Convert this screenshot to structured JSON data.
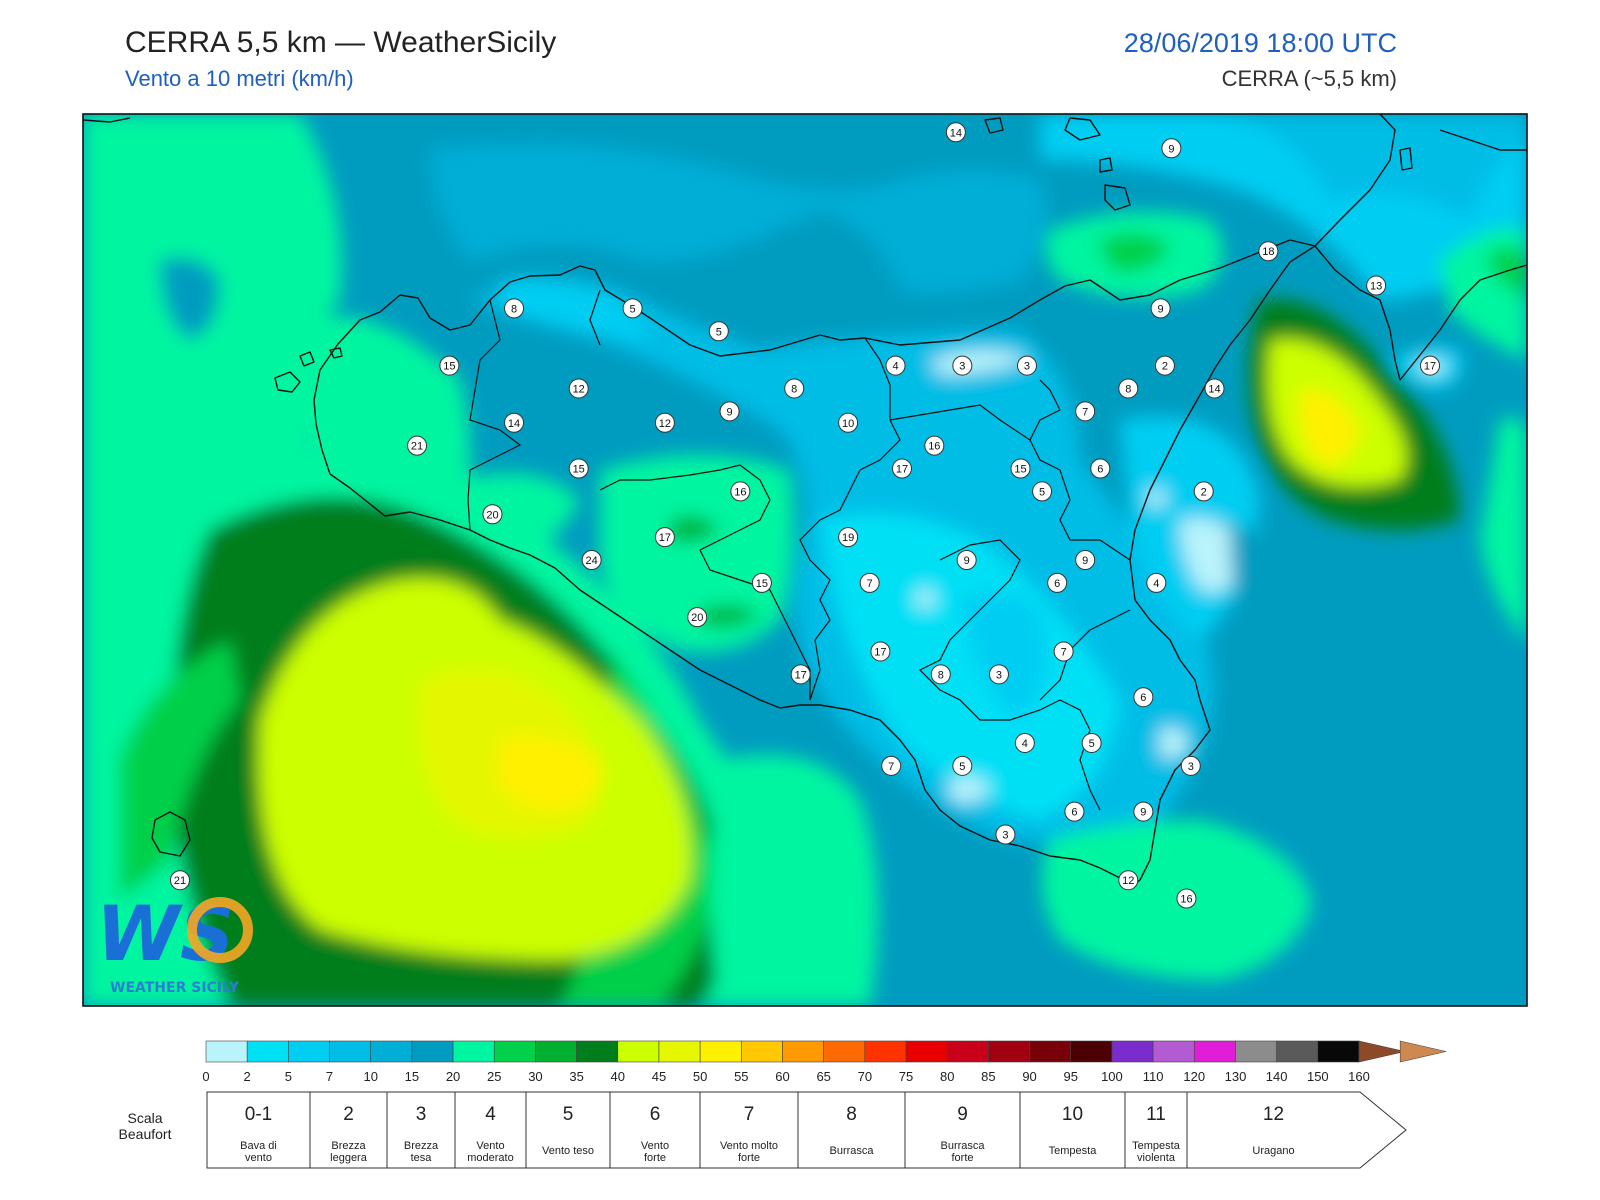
{
  "header": {
    "title": "CERRA 5,5 km — WeatherSicily",
    "subtitle": "Vento a 10 metri (km/h)",
    "datetime": "28/06/2019 18:00 UTC",
    "model": "CERRA (~5,5 km)"
  },
  "logo": {
    "text": "WS",
    "tagline": "WEATHER SICILY"
  },
  "colorbar": {
    "ticks": [
      "0",
      "2",
      "5",
      "7",
      "10",
      "15",
      "20",
      "25",
      "30",
      "35",
      "40",
      "45",
      "50",
      "55",
      "60",
      "65",
      "70",
      "75",
      "80",
      "85",
      "90",
      "95",
      "100",
      "110",
      "120",
      "130",
      "140",
      "150",
      "160"
    ],
    "colors": [
      "#b9f3fb",
      "#00e0f5",
      "#00cdf2",
      "#00bde6",
      "#00aed6",
      "#009cc0",
      "#00f5a0",
      "#00d04a",
      "#00b030",
      "#007e1c",
      "#ccff00",
      "#e4f700",
      "#fff000",
      "#ffc800",
      "#ff9a00",
      "#ff6a00",
      "#ff3300",
      "#e80000",
      "#c80018",
      "#a00010",
      "#780008",
      "#4a0004",
      "#7a2ccc",
      "#b25bd2",
      "#e01ed8",
      "#8c8c8c",
      "#5a5a5a",
      "#080808",
      "#8c4a28",
      "#cc8a50"
    ]
  },
  "beaufort": {
    "title": "Scala Beaufort",
    "scale": [
      {
        "num": "0-1",
        "desc": [
          "Bava di",
          "vento"
        ]
      },
      {
        "num": "2",
        "desc": [
          "Brezza",
          "leggera"
        ]
      },
      {
        "num": "3",
        "desc": [
          "Brezza",
          "tesa"
        ]
      },
      {
        "num": "4",
        "desc": [
          "Vento",
          "moderato"
        ]
      },
      {
        "num": "5",
        "desc": [
          "Vento teso"
        ]
      },
      {
        "num": "6",
        "desc": [
          "Vento",
          "forte"
        ]
      },
      {
        "num": "7",
        "desc": [
          "Vento molto",
          "forte"
        ]
      },
      {
        "num": "8",
        "desc": [
          "Burrasca"
        ]
      },
      {
        "num": "9",
        "desc": [
          "Burrasca",
          "forte"
        ]
      },
      {
        "num": "10",
        "desc": [
          "Tempesta"
        ]
      },
      {
        "num": "11",
        "desc": [
          "Tempesta",
          "violenta"
        ]
      },
      {
        "num": "12",
        "desc": [
          "Uragano"
        ]
      }
    ]
  },
  "stations": [
    {
      "v": "14",
      "lon": 13.95,
      "lat": 38.97
    },
    {
      "v": "9",
      "lon": 14.95,
      "lat": 38.9
    },
    {
      "v": "18",
      "lon": 15.4,
      "lat": 38.45
    },
    {
      "v": "13",
      "lon": 15.9,
      "lat": 38.3
    },
    {
      "v": "8",
      "lon": 11.9,
      "lat": 38.2
    },
    {
      "v": "5",
      "lon": 12.45,
      "lat": 38.2
    },
    {
      "v": "5",
      "lon": 12.85,
      "lat": 38.1
    },
    {
      "v": "9",
      "lon": 14.9,
      "lat": 38.2
    },
    {
      "v": "15",
      "lon": 11.6,
      "lat": 37.95
    },
    {
      "v": "12",
      "lon": 12.2,
      "lat": 37.85
    },
    {
      "v": "9",
      "lon": 12.9,
      "lat": 37.75
    },
    {
      "v": "8",
      "lon": 13.2,
      "lat": 37.85
    },
    {
      "v": "4",
      "lon": 13.67,
      "lat": 37.95
    },
    {
      "v": "3",
      "lon": 13.98,
      "lat": 37.95
    },
    {
      "v": "3",
      "lon": 14.28,
      "lat": 37.95
    },
    {
      "v": "2",
      "lon": 14.92,
      "lat": 37.95
    },
    {
      "v": "17",
      "lon": 16.15,
      "lat": 37.95
    },
    {
      "v": "8",
      "lon": 14.75,
      "lat": 37.85
    },
    {
      "v": "14",
      "lon": 15.15,
      "lat": 37.85
    },
    {
      "v": "14",
      "lon": 11.9,
      "lat": 37.7
    },
    {
      "v": "12",
      "lon": 12.6,
      "lat": 37.7
    },
    {
      "v": "10",
      "lon": 13.45,
      "lat": 37.7
    },
    {
      "v": "7",
      "lon": 14.55,
      "lat": 37.75
    },
    {
      "v": "21",
      "lon": 11.45,
      "lat": 37.6
    },
    {
      "v": "15",
      "lon": 12.2,
      "lat": 37.5
    },
    {
      "v": "17",
      "lon": 13.7,
      "lat": 37.5
    },
    {
      "v": "16",
      "lon": 13.85,
      "lat": 37.6
    },
    {
      "v": "15",
      "lon": 14.25,
      "lat": 37.5
    },
    {
      "v": "6",
      "lon": 14.62,
      "lat": 37.5
    },
    {
      "v": "16",
      "lon": 12.95,
      "lat": 37.4
    },
    {
      "v": "5",
      "lon": 14.35,
      "lat": 37.4
    },
    {
      "v": "2",
      "lon": 15.1,
      "lat": 37.4
    },
    {
      "v": "20",
      "lon": 11.8,
      "lat": 37.3
    },
    {
      "v": "17",
      "lon": 12.6,
      "lat": 37.2
    },
    {
      "v": "19",
      "lon": 13.45,
      "lat": 37.2
    },
    {
      "v": "24",
      "lon": 12.26,
      "lat": 37.1
    },
    {
      "v": "9",
      "lon": 14.0,
      "lat": 37.1
    },
    {
      "v": "9",
      "lon": 14.55,
      "lat": 37.1
    },
    {
      "v": "15",
      "lon": 13.05,
      "lat": 37.0
    },
    {
      "v": "7",
      "lon": 13.55,
      "lat": 37.0
    },
    {
      "v": "6",
      "lon": 14.42,
      "lat": 37.0
    },
    {
      "v": "4",
      "lon": 14.88,
      "lat": 37.0
    },
    {
      "v": "20",
      "lon": 12.75,
      "lat": 36.85
    },
    {
      "v": "17",
      "lon": 13.6,
      "lat": 36.7
    },
    {
      "v": "7",
      "lon": 14.45,
      "lat": 36.7
    },
    {
      "v": "17",
      "lon": 13.23,
      "lat": 36.6
    },
    {
      "v": "8",
      "lon": 13.88,
      "lat": 36.6
    },
    {
      "v": "3",
      "lon": 14.15,
      "lat": 36.6
    },
    {
      "v": "6",
      "lon": 14.82,
      "lat": 36.5
    },
    {
      "v": "4",
      "lon": 14.27,
      "lat": 36.3
    },
    {
      "v": "5",
      "lon": 14.58,
      "lat": 36.3
    },
    {
      "v": "7",
      "lon": 13.65,
      "lat": 36.2
    },
    {
      "v": "5",
      "lon": 13.98,
      "lat": 36.2
    },
    {
      "v": "3",
      "lon": 15.04,
      "lat": 36.2
    },
    {
      "v": "6",
      "lon": 14.5,
      "lat": 36.0
    },
    {
      "v": "9",
      "lon": 14.82,
      "lat": 36.0
    },
    {
      "v": "3",
      "lon": 14.18,
      "lat": 35.9
    },
    {
      "v": "12",
      "lon": 14.75,
      "lat": 35.7
    },
    {
      "v": "16",
      "lon": 15.02,
      "lat": 35.62
    },
    {
      "v": "21",
      "lon": 10.35,
      "lat": 35.7
    }
  ]
}
